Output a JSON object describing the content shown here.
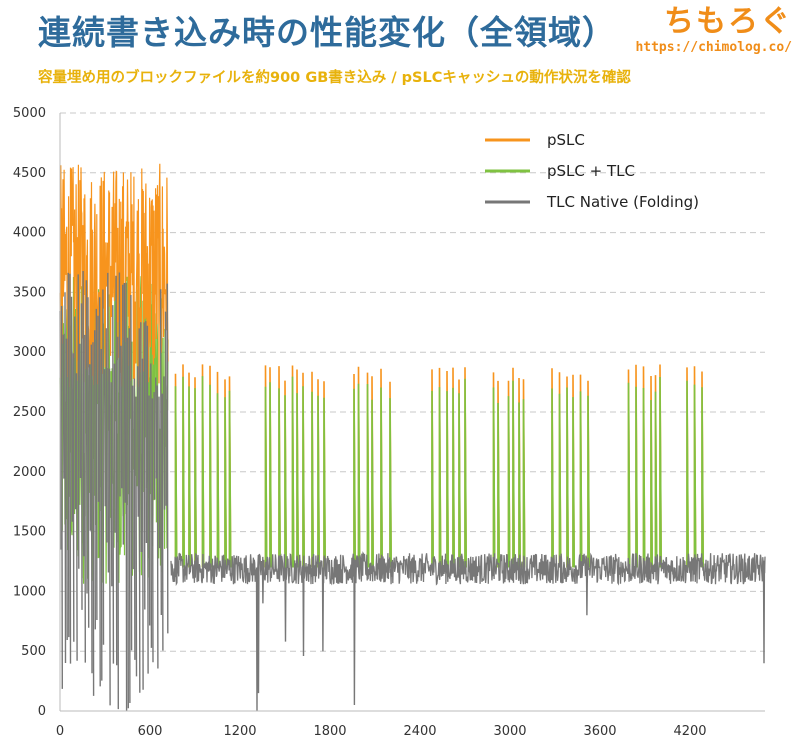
{
  "header": {
    "title": "連続書き込み時の性能変化（全領域）",
    "subtitle": "容量埋め用のブロックファイルを約900 GB書き込み / pSLCキャッシュの動作状況を確認",
    "brand_name": "ちもろぐ",
    "brand_url": "https://chimolog.co/"
  },
  "chart_data": {
    "type": "line",
    "x_ticks": [
      0,
      600,
      1200,
      1800,
      2400,
      3000,
      3600,
      4200
    ],
    "y_ticks": [
      0,
      500,
      1000,
      1500,
      2000,
      2500,
      3000,
      3500,
      4000,
      4500,
      5000
    ],
    "xlim": [
      0,
      4700
    ],
    "ylim": [
      0,
      5000
    ],
    "grid": "horizontal dashed",
    "legend_position": "top-right",
    "series": [
      {
        "name": "pSLC",
        "color": "#f7941d",
        "description_regions": [
          {
            "x_range": [
              0,
              720
            ],
            "y_range": [
              2700,
              4580
            ]
          }
        ],
        "spike_peaks_approx": 2900
      },
      {
        "name": "pSLC + TLC",
        "color": "#7fc241",
        "description_regions": [
          {
            "x_range": [
              0,
              720
            ],
            "y_range": [
              1000,
              3700
            ]
          }
        ],
        "spike_peaks_approx": 2800
      },
      {
        "name": "TLC Native (Folding)",
        "color": "#777777",
        "description_regions": [
          {
            "x_range": [
              740,
              4700
            ],
            "y_range": [
              1000,
              1320
            ]
          }
        ],
        "baseline_approx": 1180
      }
    ],
    "spike_x_positions": [
      770,
      820,
      860,
      900,
      950,
      1000,
      1050,
      1100,
      1130,
      1370,
      1400,
      1460,
      1500,
      1550,
      1580,
      1620,
      1680,
      1720,
      1760,
      1960,
      1990,
      2050,
      2080,
      2140,
      2200,
      2480,
      2530,
      2580,
      2620,
      2660,
      2700,
      2890,
      2920,
      2990,
      3020,
      3060,
      3090,
      3280,
      3330,
      3380,
      3420,
      3470,
      3520,
      3790,
      3840,
      3890,
      3940,
      3970,
      4000,
      4180,
      4230,
      4280
    ],
    "series_data_hint": "Dense oscillating throughput trace; pSLC phase ~2700-4580 MB/s until ~720, then TLC native baseline ~1000-1300 MB/s with periodic spikes to ~2900"
  }
}
